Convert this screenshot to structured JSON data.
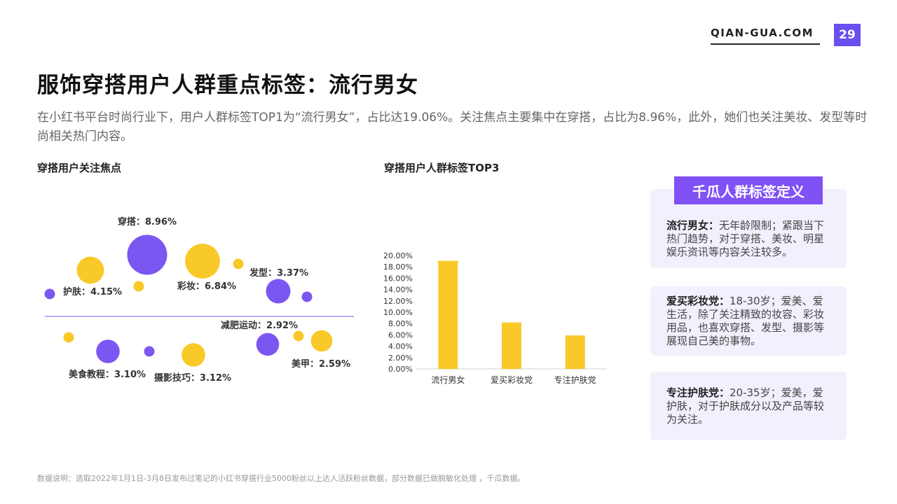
{
  "header": {
    "brand": "QIAN-GUA.COM",
    "page_number": "29"
  },
  "page_title": "服饰穿搭用户人群重点标签：流行男女",
  "intro": "在小红书平台时尚行业下，用户人群标签TOP1为“流行男女”，占比达19.06%。关注焦点主要集中在穿搭，占比为8.96%，此外，她们也关注美妆、发型等时尚相关热门内容。",
  "focus_section": {
    "title": "穿搭用户关注焦点"
  },
  "top3_section": {
    "title": "穿搭用户人群标签TOP3"
  },
  "definitions": {
    "badge": "千瓜人群标签定义",
    "items": [
      {
        "term": "流行男女：",
        "desc": "无年龄限制；紧跟当下热门趋势，对于穿搭、美妆、明星娱乐资讯等内容关注较多。"
      },
      {
        "term": "爱买彩妆党：",
        "desc": "18-30岁；爱美、爱生活，除了关注精致的妆容、彩妆用品，也喜欢穿搭、发型、摄影等展现自己美的事物。"
      },
      {
        "term": "专注护肤党：",
        "desc": "20-35岁；爱美，爱护肤，对于护肤成分以及产品等较为关注。"
      }
    ]
  },
  "footnote": "数据说明：选取2022年1月1日-3月8日发布过笔记的小红书穿搭行业5000粉丝以上达人活跃粉丝数据，部分数据已做脱敏化处理 ，千瓜数据。",
  "colors": {
    "purple": "#7b57f2",
    "yellow": "#f8c928",
    "accent": "#6b4ef0",
    "divider": "#a88ff7"
  },
  "chart_data": [
    {
      "type": "scatter",
      "chart": "bubble",
      "title": "穿搭用户关注焦点",
      "points": [
        {
          "label": "穿搭：8.96%",
          "value": 8.96,
          "color": "purple"
        },
        {
          "label": "彩妆：6.84%",
          "value": 6.84,
          "color": "yellow"
        },
        {
          "label": "护肤：4.15%",
          "value": 4.15,
          "color": "yellow"
        },
        {
          "label": "发型：3.37%",
          "value": 3.37,
          "color": "purple"
        },
        {
          "label": "摄影技巧：3.12%",
          "value": 3.12,
          "color": "yellow"
        },
        {
          "label": "美食教程：3.10%",
          "value": 3.1,
          "color": "purple"
        },
        {
          "label": "减肥运动：2.92%",
          "value": 2.92,
          "color": "purple"
        },
        {
          "label": "美甲：2.59%",
          "value": 2.59,
          "color": "yellow"
        },
        {
          "label": "",
          "value": null,
          "color": "purple"
        },
        {
          "label": "",
          "value": null,
          "color": "yellow"
        },
        {
          "label": "",
          "value": null,
          "color": "yellow"
        },
        {
          "label": "",
          "value": null,
          "color": "purple"
        },
        {
          "label": "",
          "value": null,
          "color": "yellow"
        },
        {
          "label": "",
          "value": null,
          "color": "purple"
        },
        {
          "label": "",
          "value": null,
          "color": "yellow"
        }
      ]
    },
    {
      "type": "bar",
      "title": "穿搭用户人群标签TOP3",
      "categories": [
        "流行男女",
        "爱买彩妆党",
        "专注护肤党"
      ],
      "values": [
        19.06,
        8.2,
        5.9
      ],
      "ylim": [
        0,
        20
      ],
      "yticks": [
        "0.00%",
        "2.00%",
        "4.00%",
        "6.00%",
        "8.00%",
        "10.00%",
        "12.00%",
        "14.00%",
        "16.00%",
        "18.00%",
        "20.00%"
      ],
      "color": "yellow",
      "grid": false
    }
  ]
}
